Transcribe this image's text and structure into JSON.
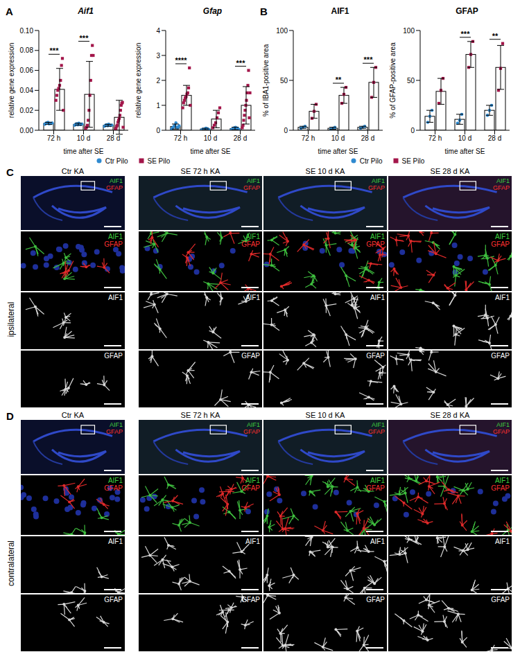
{
  "chart_data": [
    {
      "type": "bar",
      "panel_label": "A",
      "title": "Aif1",
      "x_label": "time after SE",
      "y_label": "relative gene expression",
      "categories": [
        "72 h",
        "10 d",
        "28 d"
      ],
      "ylim": [
        0,
        0.1
      ],
      "yticks": [
        {
          "value": 0,
          "label": "0.00"
        },
        {
          "value": 0.02,
          "label": "0.02"
        },
        {
          "value": 0.04,
          "label": "0.04"
        },
        {
          "value": 0.06,
          "label": "0.06"
        },
        {
          "value": 0.08,
          "label": "0.08"
        },
        {
          "value": 0.1,
          "label": "0.10"
        }
      ],
      "legend": "bottom",
      "series": [
        {
          "name": "Ctr Pilo",
          "color": "#2f8ad0",
          "marker": "circle",
          "values": [
            0.007,
            0.006,
            0.005
          ],
          "errors": [
            0.001,
            0.001,
            0.001
          ],
          "points": [
            [
              0.006,
              0.007,
              0.0075,
              0.008,
              0.0065,
              0.007,
              0.0068,
              0.0072
            ],
            [
              0.005,
              0.006,
              0.0065,
              0.0055,
              0.007,
              0.006,
              0.0058,
              0.0062
            ],
            [
              0.004,
              0.005,
              0.0055,
              0.0045,
              0.006,
              0.005,
              0.0048,
              0.0052
            ]
          ]
        },
        {
          "name": "SE Pilo",
          "color": "#a3164a",
          "marker": "square",
          "values": [
            0.041,
            0.036,
            0.013
          ],
          "errors": [
            0.021,
            0.033,
            0.017
          ],
          "points": [
            [
              0.03,
              0.035,
              0.04,
              0.042,
              0.045,
              0.05,
              0.065,
              0.072,
              0.02
            ],
            [
              0.002,
              0.003,
              0.005,
              0.01,
              0.02,
              0.035,
              0.05,
              0.075,
              0.085,
              0.075
            ],
            [
              0.001,
              0.002,
              0.004,
              0.005,
              0.008,
              0.01,
              0.012,
              0.015,
              0.02,
              0.025,
              0.027,
              0.028,
              0.003
            ]
          ]
        }
      ],
      "significance": [
        {
          "category": "72 h",
          "label": "***"
        },
        {
          "category": "10 d",
          "label": "***"
        }
      ]
    },
    {
      "type": "bar",
      "title": "Gfap",
      "x_label": "time after SE",
      "y_label": "relative gene expression",
      "categories": [
        "72 h",
        "10 d",
        "28 d"
      ],
      "ylim": [
        0,
        4
      ],
      "yticks": [
        0,
        1,
        2,
        3,
        4
      ],
      "series": [
        {
          "name": "Ctr Pilo",
          "color": "#2f8ad0",
          "marker": "circle",
          "values": [
            0.15,
            0.05,
            0.07
          ],
          "errors": [
            0.1,
            0.03,
            0.05
          ],
          "points": [
            [
              0.05,
              0.1,
              0.15,
              0.2,
              0.3,
              0.12,
              0.1,
              0.18
            ],
            [
              0.02,
              0.04,
              0.05,
              0.08,
              0.06,
              0.03
            ],
            [
              0.02,
              0.05,
              0.07,
              0.1,
              0.12,
              0.06,
              0.08,
              0.03
            ]
          ]
        },
        {
          "name": "SE Pilo",
          "color": "#a3164a",
          "marker": "square",
          "values": [
            1.4,
            0.45,
            1.0
          ],
          "errors": [
            0.4,
            0.35,
            0.75
          ],
          "points": [
            [
              0.9,
              1.1,
              1.2,
              1.3,
              1.35,
              1.45,
              1.5,
              1.7,
              2.5,
              1.0
            ],
            [
              0.1,
              0.2,
              0.3,
              0.5,
              0.7,
              0.9
            ],
            [
              0.1,
              0.2,
              0.4,
              0.6,
              0.8,
              1.0,
              1.2,
              1.5,
              1.8,
              2.4,
              0.5,
              1.5
            ]
          ]
        }
      ],
      "significance": [
        {
          "category": "72 h",
          "label": "****"
        },
        {
          "category": "28 d",
          "label": "***"
        }
      ]
    },
    {
      "type": "bar",
      "panel_label": "B",
      "title": "AIF1",
      "x_label": "time after SE",
      "y_label": "% of IBA1-positive area",
      "categories": [
        "72 h",
        "10 d",
        "28 d"
      ],
      "ylim": [
        0,
        100
      ],
      "yticks": [
        0,
        50,
        100
      ],
      "legend": "bottom",
      "series": [
        {
          "name": "Ctr Pilo",
          "color": "#2f8ad0",
          "marker": "circle",
          "values": [
            3,
            2,
            3
          ],
          "errors": [
            1,
            1,
            1
          ],
          "points": [
            [
              2,
              3,
              4
            ],
            [
              1,
              2,
              3
            ],
            [
              2,
              3,
              4
            ]
          ]
        },
        {
          "name": "SE Pilo",
          "color": "#a3164a",
          "marker": "square",
          "values": [
            19,
            35,
            48
          ],
          "errors": [
            7,
            8,
            15
          ],
          "points": [
            [
              12,
              19,
              26
            ],
            [
              27,
              36,
              43
            ],
            [
              33,
              48,
              63
            ]
          ]
        }
      ],
      "significance": [
        {
          "category": "10 d",
          "label": "**"
        },
        {
          "category": "28 d",
          "label": "***"
        }
      ]
    },
    {
      "type": "bar",
      "title": "GFAP",
      "x_label": "time after SE",
      "y_label": "% of GFAP-positive area",
      "categories": [
        "72 h",
        "10 d",
        "28 d"
      ],
      "ylim": [
        0,
        100
      ],
      "yticks": [
        0,
        50,
        100
      ],
      "series": [
        {
          "name": "Ctr Pilo",
          "color": "#2f8ad0",
          "marker": "circle",
          "values": [
            14,
            11,
            20
          ],
          "errors": [
            6,
            5,
            5
          ],
          "points": [
            [
              8,
              14,
              20
            ],
            [
              7,
              10,
              16
            ],
            [
              15,
              20,
              25
            ]
          ]
        },
        {
          "name": "SE Pilo",
          "color": "#a3164a",
          "marker": "square",
          "values": [
            39,
            76,
            63
          ],
          "errors": [
            13,
            13,
            22
          ],
          "points": [
            [
              27,
              40,
              52
            ],
            [
              63,
              76,
              89
            ],
            [
              40,
              62,
              87
            ]
          ]
        }
      ],
      "significance": [
        {
          "category": "10 d",
          "label": "***"
        },
        {
          "category": "28 d",
          "label": "**"
        }
      ]
    }
  ],
  "image_panels": [
    {
      "panel_label": "C",
      "row_label": "ipsilateral",
      "columns": [
        "Ctr KA",
        "SE 72 h KA",
        "SE 10 d KA",
        "SE 28 d KA"
      ],
      "channels": [
        "AIF1",
        "GFAP"
      ]
    },
    {
      "panel_label": "D",
      "row_label": "contralateral",
      "columns": [
        "Ctr KA",
        "SE 72 h KA",
        "SE 10 d KA",
        "SE 28 d KA"
      ],
      "channels": [
        "AIF1",
        "GFAP"
      ]
    }
  ]
}
